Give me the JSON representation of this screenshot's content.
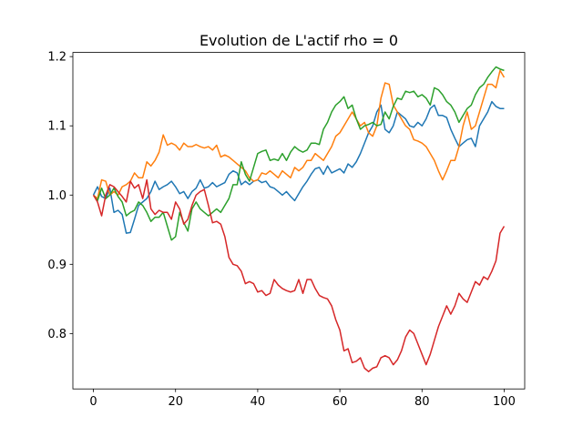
{
  "chart_data": {
    "type": "line",
    "title": "Evolution de L'actif rho = 0",
    "x": [
      0,
      1,
      2,
      3,
      4,
      5,
      6,
      7,
      8,
      9,
      10,
      11,
      12,
      13,
      14,
      15,
      16,
      17,
      18,
      19,
      20,
      21,
      22,
      23,
      24,
      25,
      26,
      27,
      28,
      29,
      30,
      31,
      32,
      33,
      34,
      35,
      36,
      37,
      38,
      39,
      40,
      41,
      42,
      43,
      44,
      45,
      46,
      47,
      48,
      49,
      50,
      51,
      52,
      53,
      54,
      55,
      56,
      57,
      58,
      59,
      60,
      61,
      62,
      63,
      64,
      65,
      66,
      67,
      68,
      69,
      70,
      71,
      72,
      73,
      74,
      75,
      76,
      77,
      78,
      79,
      80,
      81,
      82,
      83,
      84,
      85,
      86,
      87,
      88,
      89,
      90,
      91,
      92,
      93,
      94,
      95,
      96,
      97,
      98,
      99,
      100
    ],
    "series": [
      {
        "color": "#1f77b4",
        "values": [
          1.0,
          1.012,
          0.998,
          0.995,
          1.01,
          0.975,
          0.978,
          0.972,
          0.945,
          0.946,
          0.965,
          0.985,
          0.99,
          0.995,
          1.005,
          1.02,
          1.008,
          1.012,
          1.015,
          1.02,
          1.012,
          1.002,
          1.005,
          0.995,
          1.005,
          1.01,
          1.022,
          1.01,
          1.012,
          1.018,
          1.012,
          1.015,
          1.018,
          1.03,
          1.035,
          1.032,
          1.015,
          1.02,
          1.015,
          1.02,
          1.022,
          1.018,
          1.02,
          1.012,
          1.01,
          1.005,
          1.0,
          1.005,
          0.998,
          0.992,
          1.002,
          1.012,
          1.02,
          1.03,
          1.038,
          1.04,
          1.03,
          1.042,
          1.032,
          1.035,
          1.038,
          1.032,
          1.045,
          1.04,
          1.048,
          1.06,
          1.075,
          1.09,
          1.1,
          1.12,
          1.13,
          1.095,
          1.09,
          1.1,
          1.12,
          1.115,
          1.11,
          1.1,
          1.098,
          1.105,
          1.1,
          1.11,
          1.125,
          1.13,
          1.115,
          1.115,
          1.112,
          1.095,
          1.082,
          1.07,
          1.075,
          1.08,
          1.082,
          1.07,
          1.1,
          1.11,
          1.12,
          1.135,
          1.128,
          1.125,
          1.125
        ]
      },
      {
        "color": "#ff7f0e",
        "values": [
          1.0,
          0.995,
          1.022,
          1.02,
          1.0,
          1.005,
          1.0,
          1.012,
          1.015,
          1.02,
          1.032,
          1.025,
          1.025,
          1.048,
          1.042,
          1.05,
          1.062,
          1.087,
          1.072,
          1.075,
          1.072,
          1.065,
          1.075,
          1.07,
          1.07,
          1.073,
          1.07,
          1.068,
          1.07,
          1.065,
          1.072,
          1.055,
          1.058,
          1.055,
          1.05,
          1.045,
          1.04,
          1.035,
          1.025,
          1.02,
          1.022,
          1.032,
          1.03,
          1.035,
          1.03,
          1.025,
          1.035,
          1.03,
          1.025,
          1.04,
          1.035,
          1.04,
          1.05,
          1.05,
          1.06,
          1.055,
          1.05,
          1.06,
          1.07,
          1.085,
          1.09,
          1.1,
          1.11,
          1.12,
          1.11,
          1.1,
          1.105,
          1.09,
          1.085,
          1.1,
          1.14,
          1.162,
          1.16,
          1.13,
          1.12,
          1.11,
          1.1,
          1.095,
          1.08,
          1.078,
          1.075,
          1.07,
          1.06,
          1.05,
          1.035,
          1.022,
          1.035,
          1.05,
          1.05,
          1.07,
          1.1,
          1.12,
          1.095,
          1.1,
          1.12,
          1.14,
          1.16,
          1.16,
          1.155,
          1.18,
          1.17
        ]
      },
      {
        "color": "#2ca02c",
        "values": [
          1.0,
          0.992,
          1.01,
          0.995,
          1.0,
          1.01,
          0.998,
          0.99,
          0.97,
          0.975,
          0.978,
          0.99,
          0.985,
          0.975,
          0.962,
          0.968,
          0.968,
          0.975,
          0.955,
          0.935,
          0.94,
          0.975,
          0.96,
          0.948,
          0.98,
          0.99,
          0.98,
          0.975,
          0.97,
          0.975,
          0.98,
          0.975,
          0.985,
          0.995,
          1.015,
          1.015,
          1.048,
          1.03,
          1.02,
          1.04,
          1.06,
          1.063,
          1.065,
          1.05,
          1.052,
          1.05,
          1.06,
          1.05,
          1.062,
          1.07,
          1.065,
          1.062,
          1.065,
          1.075,
          1.075,
          1.073,
          1.095,
          1.105,
          1.12,
          1.13,
          1.135,
          1.142,
          1.125,
          1.13,
          1.11,
          1.095,
          1.1,
          1.102,
          1.105,
          1.1,
          1.102,
          1.12,
          1.11,
          1.128,
          1.14,
          1.138,
          1.15,
          1.148,
          1.15,
          1.142,
          1.145,
          1.14,
          1.13,
          1.155,
          1.152,
          1.145,
          1.135,
          1.13,
          1.12,
          1.105,
          1.115,
          1.125,
          1.13,
          1.145,
          1.155,
          1.16,
          1.17,
          1.178,
          1.185,
          1.182,
          1.18
        ]
      },
      {
        "color": "#d62728",
        "values": [
          1.0,
          0.99,
          0.97,
          1.0,
          1.015,
          1.012,
          1.005,
          0.998,
          0.99,
          1.02,
          1.01,
          1.015,
          0.995,
          1.022,
          0.98,
          0.972,
          0.978,
          0.975,
          0.975,
          0.965,
          0.99,
          0.98,
          0.958,
          0.965,
          0.985,
          1.0,
          1.005,
          1.008,
          0.985,
          0.96,
          0.962,
          0.958,
          0.94,
          0.91,
          0.9,
          0.898,
          0.89,
          0.872,
          0.875,
          0.872,
          0.86,
          0.862,
          0.855,
          0.858,
          0.878,
          0.87,
          0.865,
          0.862,
          0.86,
          0.862,
          0.878,
          0.858,
          0.878,
          0.878,
          0.865,
          0.855,
          0.852,
          0.85,
          0.84,
          0.82,
          0.805,
          0.775,
          0.778,
          0.758,
          0.76,
          0.765,
          0.75,
          0.745,
          0.75,
          0.752,
          0.765,
          0.768,
          0.765,
          0.755,
          0.762,
          0.775,
          0.795,
          0.805,
          0.8,
          0.785,
          0.77,
          0.755,
          0.77,
          0.79,
          0.81,
          0.825,
          0.84,
          0.828,
          0.84,
          0.858,
          0.85,
          0.845,
          0.86,
          0.875,
          0.87,
          0.882,
          0.878,
          0.89,
          0.905,
          0.945,
          0.955
        ]
      }
    ],
    "xlim": [
      -5,
      105
    ],
    "ylim": [
      0.72,
      1.206
    ],
    "xticks": [
      0,
      20,
      40,
      60,
      80,
      100
    ],
    "yticks": [
      0.8,
      0.9,
      {
        "value": 1,
        "label": "1.0"
      },
      1.1,
      1.2
    ]
  }
}
